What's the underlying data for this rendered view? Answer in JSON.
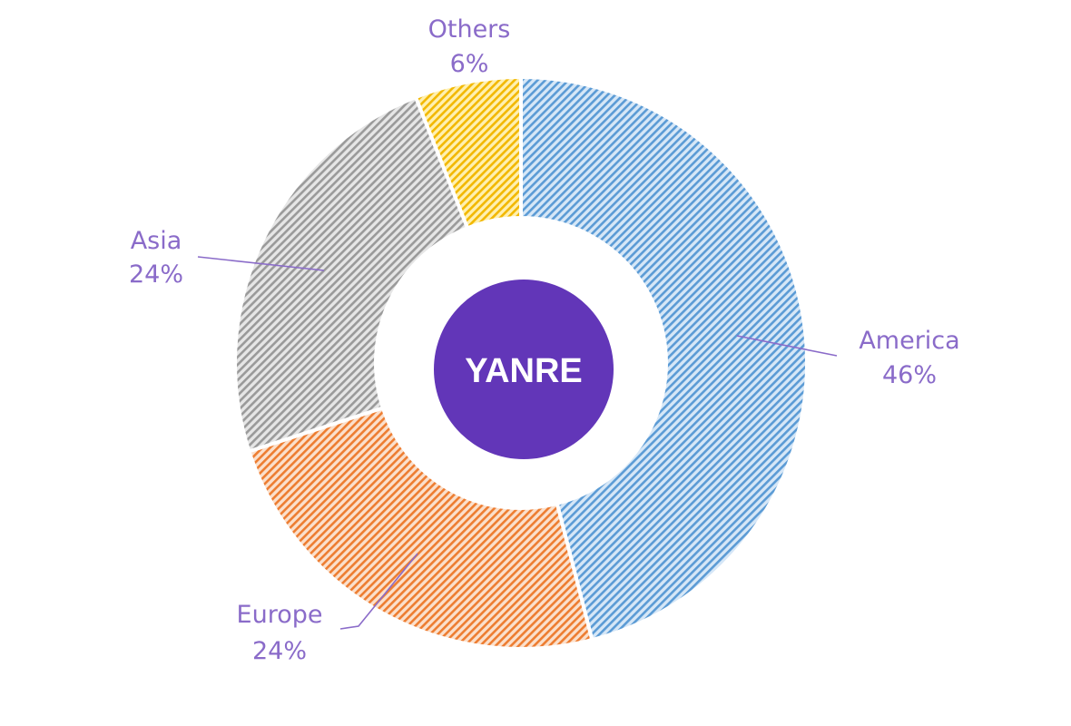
{
  "chart_data": {
    "type": "pie",
    "subtype": "donut",
    "center_label": "YANRE",
    "slices": [
      {
        "label": "America",
        "value": 46,
        "display": "46%",
        "color": "#5b9bd5",
        "bg": "#d6e7f7"
      },
      {
        "label": "Europe",
        "value": 24,
        "display": "24%",
        "color": "#ed7d31",
        "bg": "#fbe0cc"
      },
      {
        "label": "Asia",
        "value": 24,
        "display": "24%",
        "color": "#9a9a9a",
        "bg": "#e6e6e6"
      },
      {
        "label": "Others",
        "value": 6,
        "display": "6%",
        "color": "#f2b800",
        "bg": "#fff0b0"
      }
    ],
    "start_angle": "top, clockwise",
    "fill_pattern": "diagonal hatch",
    "label_color": "#8a6bc9",
    "center_color": "#6236b8",
    "legend": "none"
  }
}
